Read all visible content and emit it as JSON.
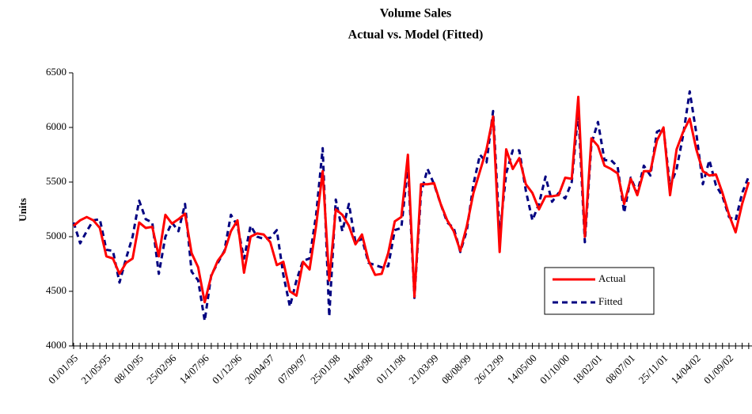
{
  "chart_data": {
    "type": "line",
    "title": "Volume Sales",
    "subtitle": "Actual vs. Model (Fitted)",
    "y_label": "Units",
    "categories": [
      "01/01/95",
      null,
      null,
      null,
      null,
      "21/05/95",
      null,
      null,
      null,
      null,
      "08/10/95",
      null,
      null,
      null,
      null,
      "25/02/96",
      null,
      null,
      null,
      null,
      "14/07/96",
      null,
      null,
      null,
      null,
      "01/12/96",
      null,
      null,
      null,
      null,
      "20/04/97",
      null,
      null,
      null,
      null,
      "07/09/97",
      null,
      null,
      null,
      null,
      "25/01/98",
      null,
      null,
      null,
      null,
      "14/06/98",
      null,
      null,
      null,
      null,
      "01/11/98",
      null,
      null,
      null,
      null,
      "21/03/99",
      null,
      null,
      null,
      null,
      "08/08/99",
      null,
      null,
      null,
      null,
      "26/12/99",
      null,
      null,
      null,
      null,
      "14/05/00",
      null,
      null,
      null,
      null,
      "01/10/00",
      null,
      null,
      null,
      null,
      "18/02/01",
      null,
      null,
      null,
      null,
      "08/07/01",
      null,
      null,
      null,
      null,
      "25/11/01",
      null,
      null,
      null,
      null,
      "14/04/02",
      null,
      null,
      null,
      null,
      "01/09/02",
      null,
      null,
      null
    ],
    "series": [
      {
        "name": "Actual",
        "color": "#ff0000",
        "style": "solid",
        "values": [
          5100,
          5150,
          5180,
          5150,
          5080,
          4820,
          4800,
          4660,
          4760,
          4800,
          5130,
          5080,
          5090,
          4820,
          5200,
          5120,
          5160,
          5210,
          4850,
          4720,
          4400,
          4640,
          4780,
          4860,
          5050,
          5150,
          4670,
          5000,
          5030,
          5020,
          4950,
          4740,
          4770,
          4500,
          4460,
          4770,
          4700,
          5100,
          5600,
          4600,
          5250,
          5200,
          5100,
          4930,
          5020,
          4780,
          4650,
          4660,
          4850,
          5140,
          5180,
          5750,
          4450,
          5480,
          5480,
          5490,
          5300,
          5150,
          5050,
          4870,
          5100,
          5400,
          5600,
          5800,
          6100,
          4860,
          5800,
          5620,
          5720,
          5480,
          5400,
          5250,
          5370,
          5370,
          5380,
          5540,
          5530,
          6280,
          5000,
          5900,
          5830,
          5650,
          5620,
          5580,
          5300,
          5530,
          5380,
          5600,
          5600,
          5880,
          6000,
          5380,
          5800,
          5960,
          6080,
          5800,
          5600,
          5560,
          5570,
          5400,
          5200,
          5040,
          5300,
          5500
        ]
      },
      {
        "name": "Fitted",
        "color": "#000080",
        "style": "dashed",
        "values": [
          5130,
          4940,
          5050,
          5150,
          5160,
          4880,
          4870,
          4580,
          4800,
          5000,
          5330,
          5160,
          5130,
          4660,
          5000,
          5130,
          5050,
          5300,
          4680,
          4600,
          4230,
          4650,
          4760,
          4870,
          5200,
          5100,
          4800,
          5100,
          5000,
          4980,
          4990,
          5060,
          4650,
          4360,
          4600,
          4780,
          4800,
          5200,
          5810,
          4270,
          5340,
          5050,
          5300,
          4950,
          4980,
          4760,
          4740,
          4720,
          4730,
          5060,
          5080,
          5650,
          4440,
          5400,
          5620,
          5480,
          5300,
          5130,
          5080,
          4860,
          5060,
          5480,
          5750,
          5680,
          6150,
          5020,
          5580,
          5790,
          5790,
          5420,
          5150,
          5300,
          5550,
          5320,
          5400,
          5350,
          5500,
          6150,
          4950,
          5850,
          6050,
          5700,
          5700,
          5640,
          5220,
          5540,
          5400,
          5650,
          5560,
          5960,
          5990,
          5460,
          5620,
          5930,
          6330,
          5950,
          5480,
          5700,
          5470,
          5370,
          5180,
          5150,
          5400,
          5550
        ]
      }
    ],
    "ylim": [
      4000,
      6500
    ],
    "yticks": [
      4000,
      4500,
      5000,
      5500,
      6000,
      6500
    ],
    "grid": false,
    "legend": "lower right"
  }
}
